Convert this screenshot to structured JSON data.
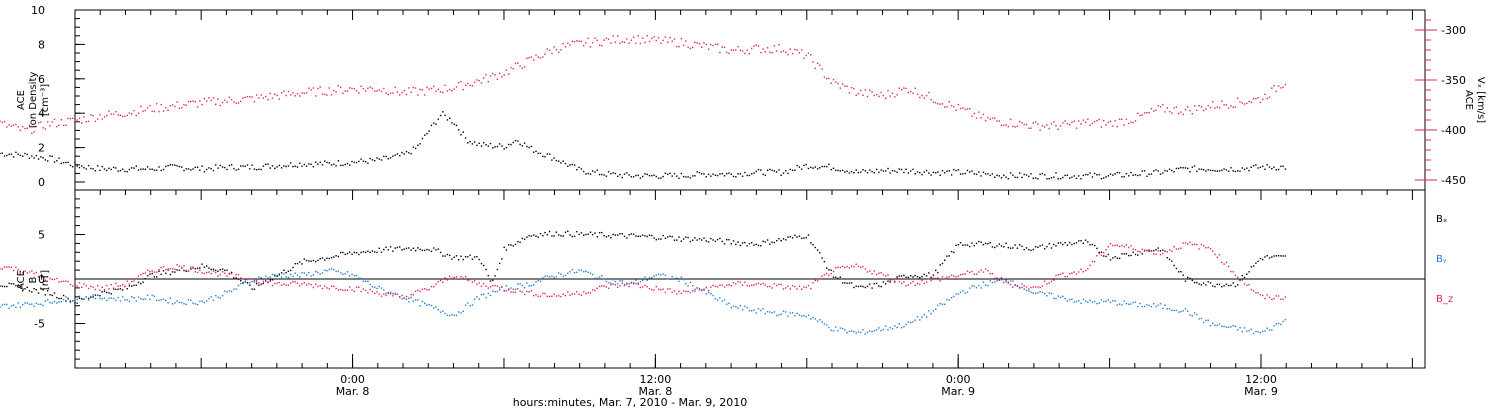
{
  "colors": {
    "black": "#000000",
    "red": "#e0245e",
    "blue": "#1e7fd6"
  },
  "chart_data": [
    {
      "type": "scatter",
      "panel": "top",
      "ylabel_lines": [
        "ACE",
        "Ion Density",
        "[cm⁻³]"
      ],
      "ylim": [
        0,
        10
      ],
      "yticks": [
        0,
        2,
        4,
        6,
        8,
        10
      ],
      "right_axis": {
        "label_lines": [
          "ACE",
          "Vₓ [km/s]"
        ],
        "ylim": [
          -460,
          -280
        ],
        "yticks": [
          -300,
          -350,
          -400,
          -450
        ],
        "color": "#e0245e"
      },
      "series": [
        {
          "color": "#000000",
          "axis": "left",
          "points": [
            [
              -14,
              1.7
            ],
            [
              -13,
              1.6
            ],
            [
              -12,
              1.4
            ],
            [
              -11,
              1.0
            ],
            [
              -10,
              0.8
            ],
            [
              -9,
              0.8
            ],
            [
              -8,
              0.8
            ],
            [
              -7,
              0.9
            ],
            [
              -6,
              0.8
            ],
            [
              -5,
              0.9
            ],
            [
              -4,
              0.9
            ],
            [
              -3,
              1.0
            ],
            [
              -2,
              1.1
            ],
            [
              -1,
              1.1
            ],
            [
              0,
              1.2
            ],
            [
              1,
              1.3
            ],
            [
              2,
              1.6
            ],
            [
              2.5,
              2.0
            ],
            [
              3,
              3.0
            ],
            [
              3.5,
              4.0
            ],
            [
              4,
              3.5
            ],
            [
              4.5,
              2.5
            ],
            [
              5,
              2.2
            ],
            [
              6,
              2.1
            ],
            [
              6.5,
              2.5
            ],
            [
              7,
              2.0
            ],
            [
              8,
              1.4
            ],
            [
              9,
              0.7
            ],
            [
              10,
              0.5
            ],
            [
              11,
              0.4
            ],
            [
              12,
              0.4
            ],
            [
              13,
              0.4
            ],
            [
              14,
              0.5
            ],
            [
              15,
              0.5
            ],
            [
              16,
              0.6
            ],
            [
              17,
              0.6
            ],
            [
              18,
              1.0
            ],
            [
              19,
              0.9
            ],
            [
              20,
              0.6
            ],
            [
              21,
              0.7
            ],
            [
              22,
              0.7
            ],
            [
              23,
              0.6
            ],
            [
              24,
              0.6
            ],
            [
              25,
              0.5
            ],
            [
              26,
              0.4
            ],
            [
              27,
              0.4
            ],
            [
              28,
              0.4
            ],
            [
              29,
              0.4
            ],
            [
              30,
              0.4
            ],
            [
              31,
              0.5
            ],
            [
              32,
              0.6
            ],
            [
              33,
              0.8
            ],
            [
              34,
              0.8
            ],
            [
              35,
              0.8
            ],
            [
              36,
              0.9
            ],
            [
              37,
              0.9
            ]
          ]
        },
        {
          "color": "#e0245e",
          "axis": "right",
          "points": [
            [
              -14,
              -393
            ],
            [
              -13,
              -400
            ],
            [
              -12,
              -393
            ],
            [
              -11,
              -390
            ],
            [
              -10,
              -385
            ],
            [
              -9,
              -382
            ],
            [
              -8,
              -378
            ],
            [
              -7,
              -375
            ],
            [
              -6,
              -372
            ],
            [
              -5,
              -370
            ],
            [
              -4,
              -368
            ],
            [
              -3,
              -365
            ],
            [
              -2,
              -362
            ],
            [
              -1,
              -360
            ],
            [
              0,
              -358
            ],
            [
              1,
              -358
            ],
            [
              2,
              -362
            ],
            [
              3,
              -360
            ],
            [
              4,
              -357
            ],
            [
              5,
              -350
            ],
            [
              6,
              -342
            ],
            [
              7,
              -330
            ],
            [
              8,
              -318
            ],
            [
              9,
              -313
            ],
            [
              10,
              -310
            ],
            [
              11,
              -308
            ],
            [
              12,
              -310
            ],
            [
              13,
              -312
            ],
            [
              14,
              -316
            ],
            [
              15,
              -320
            ],
            [
              16,
              -318
            ],
            [
              17,
              -318
            ],
            [
              18,
              -325
            ],
            [
              19,
              -352
            ],
            [
              20,
              -362
            ],
            [
              21,
              -365
            ],
            [
              22,
              -358
            ],
            [
              23,
              -368
            ],
            [
              24,
              -378
            ],
            [
              25,
              -388
            ],
            [
              26,
              -392
            ],
            [
              27,
              -395
            ],
            [
              28,
              -395
            ],
            [
              29,
              -392
            ],
            [
              30,
              -393
            ],
            [
              31,
              -388
            ],
            [
              32,
              -378
            ],
            [
              33,
              -380
            ],
            [
              34,
              -375
            ],
            [
              35,
              -372
            ],
            [
              36,
              -368
            ],
            [
              37,
              -350
            ]
          ]
        }
      ]
    },
    {
      "type": "scatter",
      "panel": "bottom",
      "ylabel_lines": [
        "ACE",
        "B",
        "[nT]"
      ],
      "ylim": [
        -10,
        10
      ],
      "yticks": [
        -5,
        0,
        5
      ],
      "zero_line": true,
      "series": [
        {
          "name": "Bₓ",
          "color": "#000000",
          "points": [
            [
              -14,
              -0.5
            ],
            [
              -12,
              -1.5
            ],
            [
              -11,
              -2.5
            ],
            [
              -10,
              -1.5
            ],
            [
              -9,
              -1.0
            ],
            [
              -8,
              0.5
            ],
            [
              -7,
              1.0
            ],
            [
              -6,
              1.5
            ],
            [
              -5,
              1.0
            ],
            [
              -4,
              -1.0
            ],
            [
              -3,
              0.5
            ],
            [
              -2,
              2.0
            ],
            [
              -1,
              2.5
            ],
            [
              0,
              3.0
            ],
            [
              1,
              3.3
            ],
            [
              2,
              3.5
            ],
            [
              3,
              3.5
            ],
            [
              4,
              2.5
            ],
            [
              5,
              2.5
            ],
            [
              5.5,
              -0.5
            ],
            [
              6,
              3.5
            ],
            [
              7,
              5.0
            ],
            [
              8,
              5.2
            ],
            [
              9,
              5.1
            ],
            [
              10,
              5.0
            ],
            [
              11,
              4.9
            ],
            [
              12,
              4.8
            ],
            [
              13,
              4.6
            ],
            [
              14,
              4.5
            ],
            [
              15,
              4.2
            ],
            [
              16,
              4.0
            ],
            [
              17,
              4.5
            ],
            [
              18,
              5.0
            ],
            [
              19,
              0.5
            ],
            [
              20,
              -1.0
            ],
            [
              21,
              -0.5
            ],
            [
              22,
              0.5
            ],
            [
              23,
              0.5
            ],
            [
              24,
              4.0
            ],
            [
              25,
              4.0
            ],
            [
              26,
              3.8
            ],
            [
              27,
              3.5
            ],
            [
              28,
              4.0
            ],
            [
              29,
              4.2
            ],
            [
              30,
              2.5
            ],
            [
              31,
              3.0
            ],
            [
              32,
              3.5
            ],
            [
              33,
              0.0
            ],
            [
              34,
              -0.5
            ],
            [
              35,
              -0.5
            ],
            [
              36,
              2.5
            ],
            [
              37,
              2.5
            ]
          ]
        },
        {
          "name": "Bᵧ",
          "color": "#1e7fd6",
          "points": [
            [
              -14,
              -3.0
            ],
            [
              -13,
              -2.8
            ],
            [
              -12,
              -2.5
            ],
            [
              -11,
              -2.0
            ],
            [
              -10,
              -2.0
            ],
            [
              -9,
              -2.2
            ],
            [
              -8,
              -2.0
            ],
            [
              -7,
              -2.5
            ],
            [
              -6,
              -2.5
            ],
            [
              -5,
              -1.5
            ],
            [
              -4,
              0.0
            ],
            [
              -3,
              0.5
            ],
            [
              -2,
              0.5
            ],
            [
              -1,
              1.0
            ],
            [
              0,
              0.5
            ],
            [
              1,
              -1.0
            ],
            [
              2,
              -2.0
            ],
            [
              3,
              -3.0
            ],
            [
              4,
              -4.0
            ],
            [
              5,
              -2.0
            ],
            [
              6,
              -1.0
            ],
            [
              7,
              -0.5
            ],
            [
              8,
              0.5
            ],
            [
              9,
              1.0
            ],
            [
              10,
              0.0
            ],
            [
              11,
              -0.5
            ],
            [
              12,
              0.5
            ],
            [
              13,
              0.0
            ],
            [
              14,
              -1.5
            ],
            [
              15,
              -3.0
            ],
            [
              16,
              -3.5
            ],
            [
              17,
              -3.8
            ],
            [
              18,
              -4.0
            ],
            [
              19,
              -5.5
            ],
            [
              20,
              -6.0
            ],
            [
              21,
              -5.5
            ],
            [
              22,
              -5.0
            ],
            [
              23,
              -3.5
            ],
            [
              24,
              -1.5
            ],
            [
              25,
              -0.5
            ],
            [
              26,
              0.0
            ],
            [
              27,
              -1.5
            ],
            [
              28,
              -2.0
            ],
            [
              29,
              -2.5
            ],
            [
              30,
              -2.5
            ],
            [
              31,
              -2.8
            ],
            [
              32,
              -3.0
            ],
            [
              33,
              -3.5
            ],
            [
              34,
              -5.0
            ],
            [
              35,
              -5.5
            ],
            [
              36,
              -6.0
            ],
            [
              37,
              -4.5
            ]
          ]
        },
        {
          "name": "B_z",
          "color": "#e0245e",
          "points": [
            [
              -14,
              1.5
            ],
            [
              -13,
              1.0
            ],
            [
              -12,
              0.0
            ],
            [
              -11,
              -0.5
            ],
            [
              -10,
              -1.0
            ],
            [
              -9,
              -0.5
            ],
            [
              -8,
              1.0
            ],
            [
              -7,
              1.5
            ],
            [
              -6,
              1.0
            ],
            [
              -5,
              0.5
            ],
            [
              -4,
              0.0
            ],
            [
              -3,
              -0.5
            ],
            [
              -2,
              -0.5
            ],
            [
              -1,
              -0.8
            ],
            [
              0,
              -1.0
            ],
            [
              1,
              -1.5
            ],
            [
              2,
              -2.0
            ],
            [
              3,
              -1.0
            ],
            [
              4,
              0.5
            ],
            [
              5,
              -0.5
            ],
            [
              6,
              -1.0
            ],
            [
              7,
              -1.5
            ],
            [
              8,
              -1.8
            ],
            [
              9,
              -1.5
            ],
            [
              10,
              -0.8
            ],
            [
              11,
              -0.5
            ],
            [
              12,
              -1.0
            ],
            [
              13,
              -1.5
            ],
            [
              14,
              -1.0
            ],
            [
              15,
              -0.5
            ],
            [
              16,
              -0.5
            ],
            [
              17,
              -0.8
            ],
            [
              18,
              -1.0
            ],
            [
              19,
              1.0
            ],
            [
              20,
              1.5
            ],
            [
              21,
              0.5
            ],
            [
              22,
              -0.5
            ],
            [
              23,
              0.0
            ],
            [
              24,
              0.5
            ],
            [
              25,
              1.0
            ],
            [
              26,
              -0.5
            ],
            [
              27,
              -1.0
            ],
            [
              28,
              0.5
            ],
            [
              29,
              1.0
            ],
            [
              30,
              4.0
            ],
            [
              31,
              3.5
            ],
            [
              32,
              3.0
            ],
            [
              33,
              4.0
            ],
            [
              34,
              3.5
            ],
            [
              35,
              0.5
            ],
            [
              36,
              -2.0
            ],
            [
              37,
              -2.0
            ]
          ]
        }
      ]
    }
  ],
  "xaxis": {
    "ticks": [
      {
        "hour": 0,
        "time": "0:00",
        "date": "Mar. 8"
      },
      {
        "hour": 12,
        "time": "12:00",
        "date": "Mar. 8"
      },
      {
        "hour": 24,
        "time": "0:00",
        "date": "Mar. 9"
      },
      {
        "hour": 36,
        "time": "12:00",
        "date": "Mar. 9"
      }
    ],
    "title": "hours:minutes, Mar.  7, 2010 - Mar.  9, 2010",
    "range_hours": [
      -11,
      42.5
    ]
  }
}
